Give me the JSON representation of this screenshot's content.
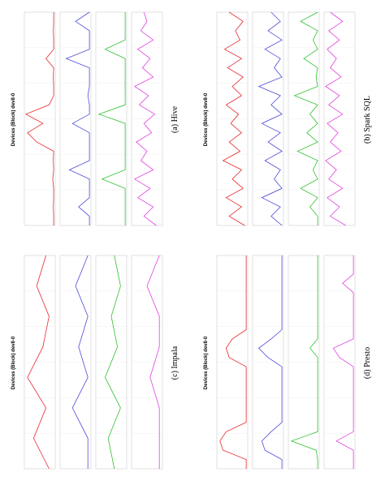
{
  "chart_data": [
    {
      "type": "line",
      "title": "Devices (Block) dev8-0",
      "caption": "(a) Hive",
      "ylim": [
        0,
        100
      ],
      "series": [
        {
          "color": "#e8262a",
          "values": [
            5,
            5,
            6,
            5,
            5,
            8,
            5,
            6,
            5,
            60,
            90,
            40,
            95,
            20,
            5,
            5,
            6,
            5,
            30,
            5,
            5,
            6,
            5,
            5
          ]
        },
        {
          "color": "#4b4bd8",
          "values": [
            5,
            5,
            40,
            5,
            5,
            5,
            70,
            5,
            5,
            5,
            5,
            60,
            5,
            5,
            10,
            5,
            5,
            5,
            80,
            5,
            5,
            5,
            50,
            5
          ]
        },
        {
          "color": "#2fc22f",
          "values": [
            5,
            5,
            5,
            5,
            5,
            80,
            5,
            5,
            5,
            5,
            5,
            5,
            90,
            5,
            5,
            5,
            5,
            5,
            5,
            70,
            5,
            5,
            5,
            5
          ]
        },
        {
          "color": "#e040e0",
          "values": [
            20,
            60,
            30,
            80,
            40,
            90,
            30,
            70,
            50,
            85,
            35,
            60,
            25,
            75,
            45,
            90,
            30,
            65,
            40,
            80,
            30,
            70,
            50,
            60
          ]
        }
      ]
    },
    {
      "type": "line",
      "title": "Devices (Block) dev8-0",
      "caption": "(b) Spark SQL",
      "ylim": [
        0,
        100
      ],
      "series": [
        {
          "color": "#e8262a",
          "values": [
            10,
            60,
            20,
            70,
            15,
            50,
            20,
            80,
            25,
            60,
            20,
            55,
            30,
            70,
            20,
            50,
            15,
            65,
            20,
            75,
            25,
            40,
            15,
            60
          ]
        },
        {
          "color": "#4b4bd8",
          "values": [
            5,
            40,
            10,
            70,
            5,
            30,
            10,
            60,
            5,
            50,
            10,
            70,
            5,
            40,
            10,
            80,
            5,
            30,
            10,
            60,
            5,
            50,
            10,
            40
          ]
        },
        {
          "color": "#2fc22f",
          "values": [
            5,
            5,
            30,
            5,
            60,
            5,
            20,
            5,
            70,
            5,
            40,
            5,
            30,
            5,
            80,
            5,
            10,
            5,
            50,
            5,
            20,
            5,
            60,
            5
          ]
        },
        {
          "color": "#e040e0",
          "values": [
            30,
            80,
            50,
            90,
            40,
            85,
            60,
            95,
            45,
            80,
            55,
            90,
            40,
            85,
            50,
            95,
            45,
            80,
            60,
            90,
            50,
            85,
            40,
            80
          ]
        }
      ]
    },
    {
      "type": "line",
      "title": "Devices (Block) dev8-0",
      "caption": "(c) Impala",
      "ylim": [
        0,
        100
      ],
      "series": [
        {
          "color": "#e8262a",
          "values": [
            20,
            70,
            30,
            90,
            40,
            20,
            60,
            30
          ]
        },
        {
          "color": "#4b4bd8",
          "values": [
            10,
            10,
            60,
            10,
            40,
            10,
            50,
            10
          ]
        },
        {
          "color": "#2fc22f",
          "values": [
            40,
            60,
            20,
            70,
            30,
            50,
            20,
            40
          ]
        },
        {
          "color": "#e040e0",
          "values": [
            10,
            10,
            10,
            40,
            10,
            10,
            50,
            10
          ]
        }
      ]
    },
    {
      "type": "line",
      "title": "Devices (Block) dev8-0",
      "caption": "(d) Presto",
      "ylim": [
        0,
        100
      ],
      "series": [
        {
          "color": "#e8262a",
          "values": [
            5,
            5,
            80,
            90,
            70,
            5,
            5,
            5,
            5,
            5,
            5,
            5,
            60,
            70,
            50,
            5,
            5,
            5,
            5,
            5,
            5,
            5,
            5,
            5
          ]
        },
        {
          "color": "#4b4bd8",
          "values": [
            5,
            5,
            60,
            70,
            40,
            5,
            5,
            5,
            5,
            5,
            5,
            5,
            50,
            80,
            40,
            5,
            5,
            5,
            5,
            5,
            5,
            5,
            5,
            5
          ]
        },
        {
          "color": "#2fc22f",
          "values": [
            5,
            5,
            10,
            90,
            5,
            5,
            5,
            5,
            5,
            5,
            5,
            5,
            5,
            30,
            5,
            5,
            5,
            5,
            5,
            5,
            5,
            5,
            5,
            5
          ]
        },
        {
          "color": "#e040e0",
          "values": [
            5,
            5,
            5,
            60,
            5,
            5,
            5,
            5,
            5,
            5,
            5,
            5,
            50,
            70,
            5,
            5,
            5,
            5,
            5,
            5,
            40,
            5,
            5,
            5
          ]
        }
      ]
    }
  ]
}
